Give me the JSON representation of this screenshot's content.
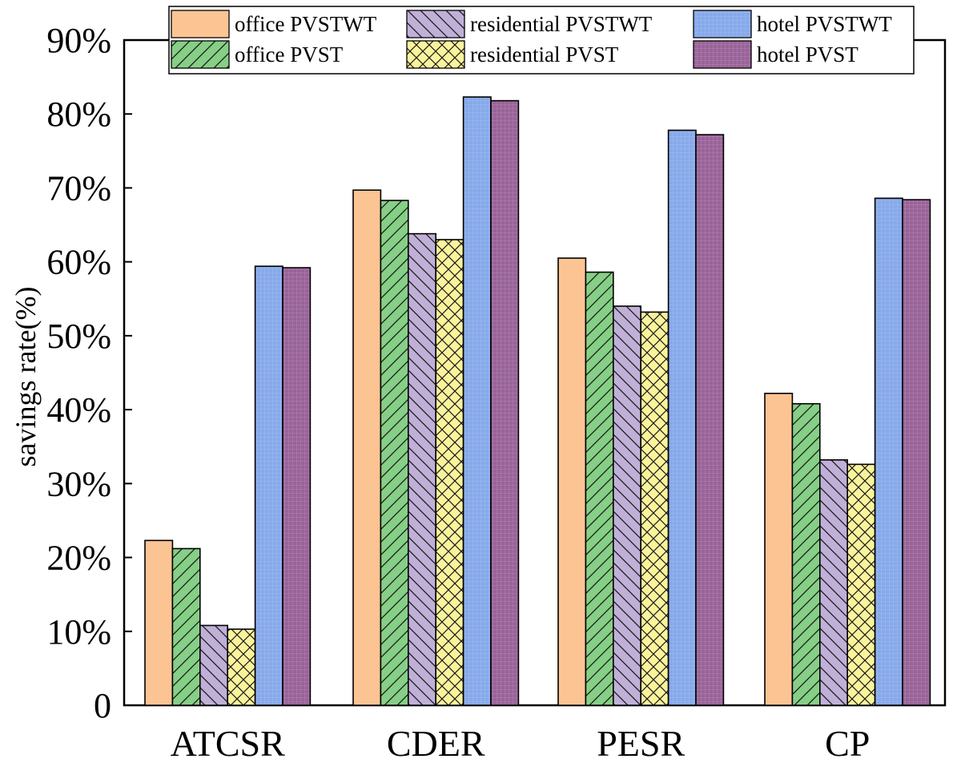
{
  "chart_data": {
    "type": "bar",
    "title": "",
    "xlabel": "",
    "ylabel": "savings rate(%)",
    "ylim": [
      0,
      90
    ],
    "ytick_values": [
      0,
      10,
      20,
      30,
      40,
      50,
      60,
      70,
      80,
      90
    ],
    "ytick_labels": [
      "0",
      "10%",
      "20%",
      "30%",
      "40%",
      "50%",
      "60%",
      "70%",
      "80%",
      "90%"
    ],
    "categories": [
      "ATCSR",
      "CDER",
      "PESR",
      "CP"
    ],
    "legend_position": "top",
    "series": [
      {
        "name": "office PVSTWT",
        "color": "#fdc493",
        "pattern": "solid",
        "values": [
          22.3,
          69.7,
          60.5,
          42.2
        ]
      },
      {
        "name": "office PVST",
        "color": "#86cf86",
        "pattern": "diag-up",
        "values": [
          21.2,
          68.3,
          58.6,
          40.8
        ]
      },
      {
        "name": "residential PVSTWT",
        "color": "#c0b0d8",
        "pattern": "diag-down",
        "values": [
          10.8,
          63.8,
          54.0,
          33.2
        ]
      },
      {
        "name": "residential PVST",
        "color": "#fbf39c",
        "pattern": "cross",
        "values": [
          10.3,
          63.0,
          53.2,
          32.6
        ]
      },
      {
        "name": "hotel PVSTWT",
        "color": "#86a9ea",
        "pattern": "fine-grid",
        "values": [
          59.4,
          82.3,
          77.8,
          68.6
        ]
      },
      {
        "name": "hotel PVST",
        "color": "#996398",
        "pattern": "fine-grid",
        "values": [
          59.2,
          81.8,
          77.2,
          68.4
        ]
      }
    ]
  }
}
